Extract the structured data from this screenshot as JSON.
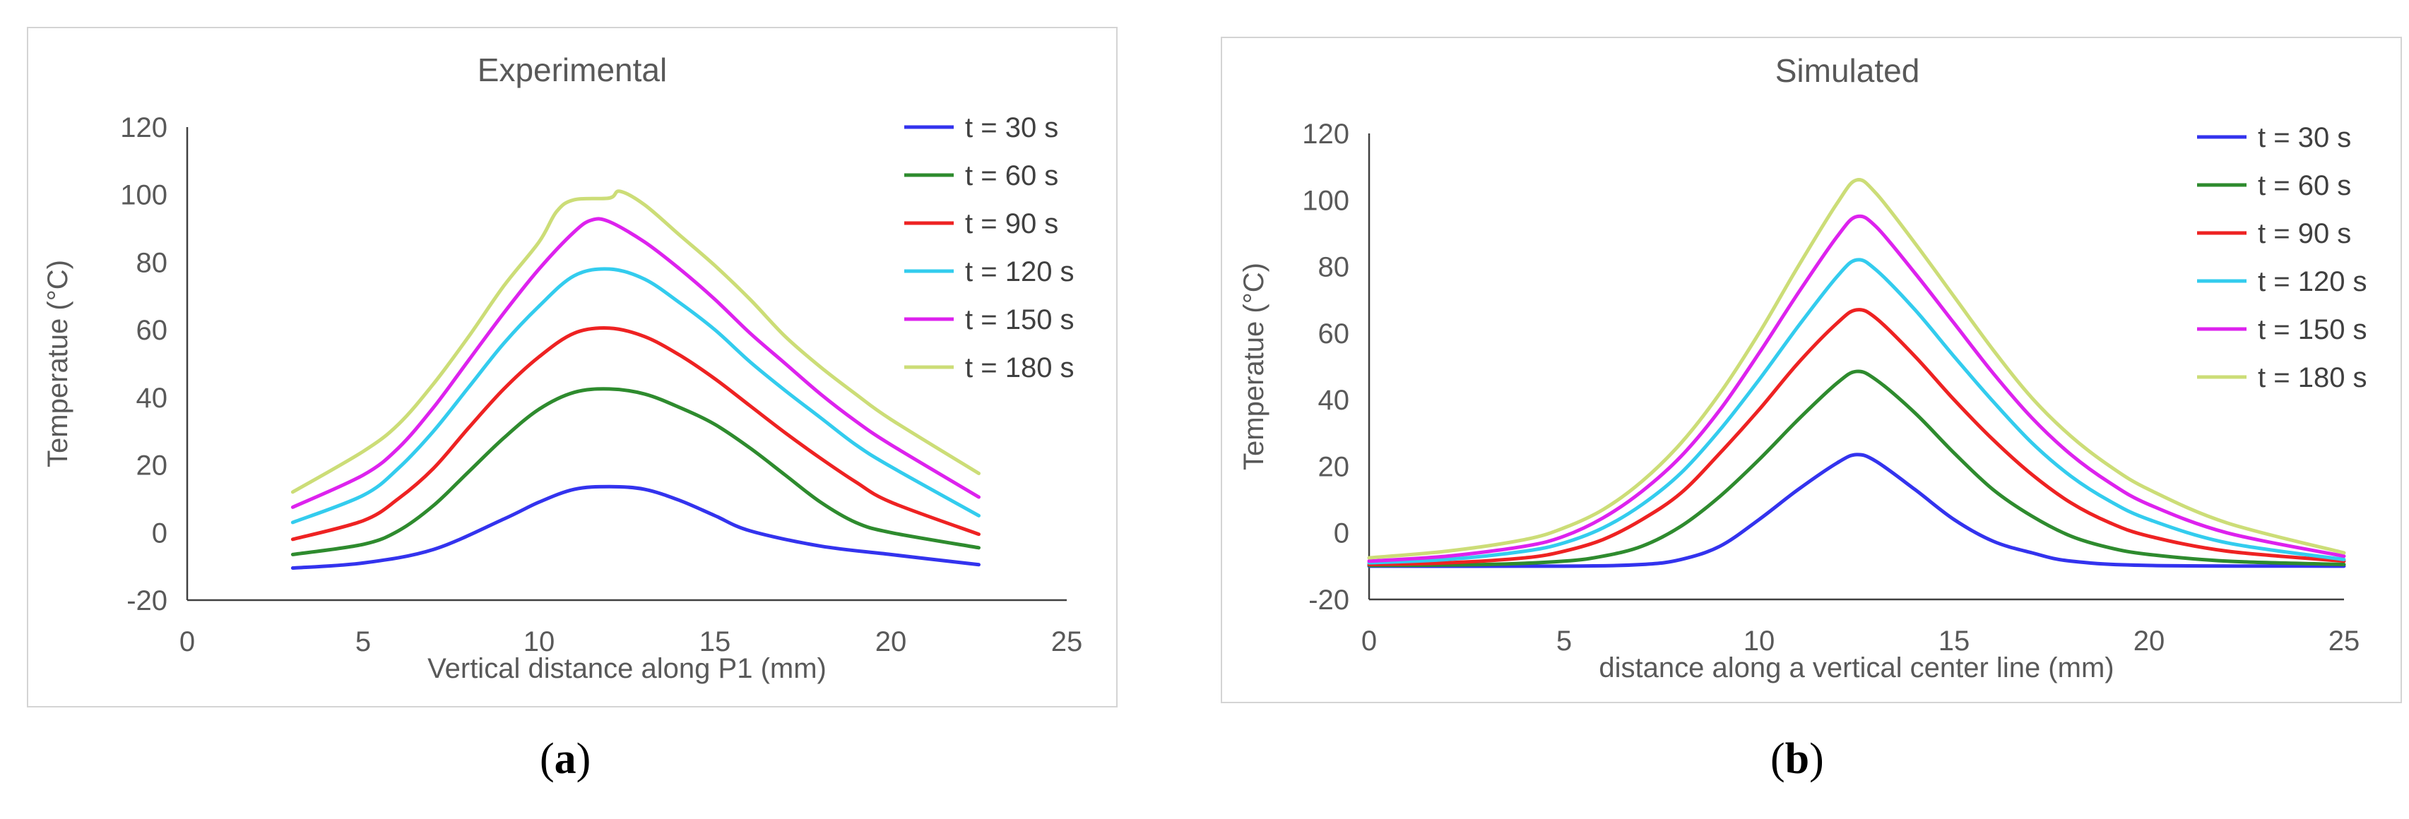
{
  "captions": {
    "a_open": "(",
    "a_letter": "a",
    "a_close": ")",
    "b_open": "(",
    "b_letter": "b",
    "b_close": ")"
  },
  "colors": {
    "t30": "#3333ee",
    "t60": "#2e8b2e",
    "t90": "#ee2222",
    "t120": "#33ccee",
    "t150": "#dd22ee",
    "t180": "#ccdd77",
    "axis": "#404040",
    "text": "#595959"
  },
  "chart_data": [
    {
      "type": "line",
      "title": "Experimental",
      "xlabel": "Vertical distance along P1 (mm)",
      "ylabel": "Temperatue (°C)",
      "xlim": [
        0,
        25
      ],
      "ylim": [
        -20,
        120
      ],
      "xticks": [
        0,
        5,
        10,
        15,
        20,
        25
      ],
      "yticks": [
        -20,
        0,
        20,
        40,
        60,
        80,
        100,
        120
      ],
      "legend_position": "top-right",
      "series": [
        {
          "name": "t = 30 s",
          "color": "#3333ee",
          "points": [
            [
              3,
              -10.5
            ],
            [
              5,
              -9
            ],
            [
              7,
              -5
            ],
            [
              9,
              4
            ],
            [
              10,
              9
            ],
            [
              11,
              12.8
            ],
            [
              12,
              13.6
            ],
            [
              13,
              12.8
            ],
            [
              14,
              9.5
            ],
            [
              15,
              5
            ],
            [
              16,
              0.5
            ],
            [
              18,
              -4
            ],
            [
              20,
              -6.5
            ],
            [
              22.5,
              -9.5
            ]
          ]
        },
        {
          "name": "t = 60 s",
          "color": "#2e8b2e",
          "points": [
            [
              3,
              -6.5
            ],
            [
              5,
              -3.5
            ],
            [
              6,
              0.5
            ],
            [
              7,
              8
            ],
            [
              8,
              18
            ],
            [
              9,
              28
            ],
            [
              10,
              36.5
            ],
            [
              11,
              41.5
            ],
            [
              12,
              42.5
            ],
            [
              13,
              41
            ],
            [
              14,
              37
            ],
            [
              15,
              32
            ],
            [
              16,
              25
            ],
            [
              17,
              17
            ],
            [
              18,
              9
            ],
            [
              19,
              3
            ],
            [
              20,
              0
            ],
            [
              22.5,
              -4.5
            ]
          ]
        },
        {
          "name": "t = 90 s",
          "color": "#ee2222",
          "points": [
            [
              3,
              -2
            ],
            [
              5,
              3.5
            ],
            [
              6,
              10
            ],
            [
              7,
              19
            ],
            [
              8,
              31
            ],
            [
              9,
              42.5
            ],
            [
              10,
              52
            ],
            [
              11,
              59
            ],
            [
              12,
              60.5
            ],
            [
              13,
              58
            ],
            [
              14,
              52.5
            ],
            [
              15,
              45.5
            ],
            [
              16,
              37.5
            ],
            [
              17,
              29.5
            ],
            [
              18,
              22
            ],
            [
              19,
              15
            ],
            [
              20,
              9
            ],
            [
              22.5,
              -0.5
            ]
          ]
        },
        {
          "name": "t = 120 s",
          "color": "#33ccee",
          "points": [
            [
              3,
              3
            ],
            [
              5,
              11
            ],
            [
              6,
              19
            ],
            [
              7,
              30
            ],
            [
              8,
              43
            ],
            [
              9,
              56
            ],
            [
              10,
              67
            ],
            [
              11,
              76
            ],
            [
              12,
              78
            ],
            [
              13,
              75
            ],
            [
              14,
              68
            ],
            [
              15,
              60
            ],
            [
              16,
              50.5
            ],
            [
              17,
              42
            ],
            [
              18,
              34
            ],
            [
              19,
              26
            ],
            [
              20,
              19.5
            ],
            [
              22.5,
              5
            ]
          ]
        },
        {
          "name": "t = 150 s",
          "color": "#dd22ee",
          "points": [
            [
              3,
              7.5
            ],
            [
              5,
              17
            ],
            [
              6,
              25
            ],
            [
              7,
              37
            ],
            [
              8,
              51
            ],
            [
              9,
              65
            ],
            [
              10,
              78
            ],
            [
              11,
              89
            ],
            [
              11.5,
              92.5
            ],
            [
              12,
              92
            ],
            [
              13,
              86
            ],
            [
              14,
              78
            ],
            [
              15,
              69
            ],
            [
              16,
              59
            ],
            [
              17,
              50
            ],
            [
              18,
              41
            ],
            [
              19,
              33
            ],
            [
              20,
              26
            ],
            [
              22.5,
              10.5
            ]
          ]
        },
        {
          "name": "t = 180 s",
          "color": "#ccdd77",
          "points": [
            [
              3,
              12
            ],
            [
              5,
              24
            ],
            [
              6,
              32
            ],
            [
              7,
              44
            ],
            [
              8,
              58
            ],
            [
              9,
              73
            ],
            [
              10,
              86
            ],
            [
              10.5,
              95
            ],
            [
              11,
              98.5
            ],
            [
              12,
              99
            ],
            [
              12.3,
              101
            ],
            [
              13,
              97
            ],
            [
              14,
              88
            ],
            [
              15,
              79
            ],
            [
              16,
              69
            ],
            [
              17,
              58
            ],
            [
              18,
              49
            ],
            [
              19,
              41
            ],
            [
              20,
              33.5
            ],
            [
              22.5,
              17.5
            ]
          ]
        }
      ]
    },
    {
      "type": "line",
      "title": "Simulated",
      "xlabel": "distance along a vertical center line (mm)",
      "ylabel": "Temperatue (°C)",
      "xlim": [
        0,
        25
      ],
      "ylim": [
        -20,
        120
      ],
      "xticks": [
        0,
        5,
        10,
        15,
        20,
        25
      ],
      "yticks": [
        -20,
        0,
        20,
        40,
        60,
        80,
        100,
        120
      ],
      "legend_position": "top-right",
      "series": [
        {
          "name": "t = 30 s",
          "color": "#3333ee",
          "points": [
            [
              0,
              -10
            ],
            [
              5,
              -10
            ],
            [
              7,
              -9.5
            ],
            [
              8,
              -8
            ],
            [
              9,
              -4
            ],
            [
              10,
              4
            ],
            [
              11,
              13
            ],
            [
              12,
              21
            ],
            [
              12.5,
              23.5
            ],
            [
              13,
              21.5
            ],
            [
              14,
              13
            ],
            [
              15,
              4
            ],
            [
              16,
              -2.5
            ],
            [
              17,
              -6
            ],
            [
              18,
              -8.5
            ],
            [
              20,
              -9.8
            ],
            [
              25,
              -10
            ]
          ]
        },
        {
          "name": "t = 60 s",
          "color": "#2e8b2e",
          "points": [
            [
              0,
              -9.8
            ],
            [
              3,
              -9.5
            ],
            [
              5,
              -8.5
            ],
            [
              6,
              -7
            ],
            [
              7,
              -4
            ],
            [
              8,
              2
            ],
            [
              9,
              11
            ],
            [
              10,
              22
            ],
            [
              11,
              34
            ],
            [
              12,
              45
            ],
            [
              12.5,
              48.5
            ],
            [
              13,
              46
            ],
            [
              14,
              36
            ],
            [
              15,
              24
            ],
            [
              16,
              13
            ],
            [
              17,
              5
            ],
            [
              18,
              -1
            ],
            [
              19,
              -4.5
            ],
            [
              20,
              -6.5
            ],
            [
              22,
              -8.5
            ],
            [
              25,
              -9.5
            ]
          ]
        },
        {
          "name": "t = 90 s",
          "color": "#ee2222",
          "points": [
            [
              0,
              -9.5
            ],
            [
              2,
              -9
            ],
            [
              4,
              -7.5
            ],
            [
              5,
              -5.5
            ],
            [
              6,
              -2
            ],
            [
              7,
              4
            ],
            [
              8,
              12
            ],
            [
              9,
              24
            ],
            [
              10,
              37
            ],
            [
              11,
              51
            ],
            [
              12,
              63
            ],
            [
              12.5,
              67
            ],
            [
              13,
              64.5
            ],
            [
              14,
              53
            ],
            [
              15,
              40
            ],
            [
              16,
              28
            ],
            [
              17,
              17.5
            ],
            [
              18,
              9
            ],
            [
              19,
              3
            ],
            [
              20,
              -1
            ],
            [
              22,
              -5.5
            ],
            [
              25,
              -8.5
            ]
          ]
        },
        {
          "name": "t = 120 s",
          "color": "#33ccee",
          "points": [
            [
              0,
              -9
            ],
            [
              2,
              -8
            ],
            [
              4,
              -5.5
            ],
            [
              5,
              -3
            ],
            [
              6,
              1.5
            ],
            [
              7,
              8.5
            ],
            [
              8,
              18
            ],
            [
              9,
              31
            ],
            [
              10,
              46
            ],
            [
              11,
              62
            ],
            [
              12,
              77
            ],
            [
              12.5,
              82
            ],
            [
              13,
              79
            ],
            [
              14,
              67
            ],
            [
              15,
              53
            ],
            [
              16,
              39.5
            ],
            [
              17,
              27
            ],
            [
              18,
              17
            ],
            [
              19,
              9.5
            ],
            [
              20,
              4
            ],
            [
              22,
              -3
            ],
            [
              25,
              -8
            ]
          ]
        },
        {
          "name": "t = 150 s",
          "color": "#dd22ee",
          "points": [
            [
              0,
              -8.5
            ],
            [
              2,
              -7
            ],
            [
              4,
              -4
            ],
            [
              5,
              -1
            ],
            [
              6,
              4.5
            ],
            [
              7,
              12.5
            ],
            [
              8,
              23
            ],
            [
              9,
              37
            ],
            [
              10,
              54
            ],
            [
              11,
              72
            ],
            [
              12,
              89
            ],
            [
              12.5,
              95
            ],
            [
              13,
              92
            ],
            [
              14,
              78
            ],
            [
              15,
              63
            ],
            [
              16,
              48
            ],
            [
              17,
              34.5
            ],
            [
              18,
              23.5
            ],
            [
              19,
              15
            ],
            [
              20,
              8.5
            ],
            [
              22,
              0
            ],
            [
              25,
              -7
            ]
          ]
        },
        {
          "name": "t = 180 s",
          "color": "#ccdd77",
          "points": [
            [
              0,
              -7.5
            ],
            [
              2,
              -5.5
            ],
            [
              4,
              -2
            ],
            [
              5,
              1.5
            ],
            [
              6,
              7
            ],
            [
              7,
              15.5
            ],
            [
              8,
              27
            ],
            [
              9,
              42
            ],
            [
              10,
              60
            ],
            [
              11,
              80
            ],
            [
              12,
              99
            ],
            [
              12.5,
              106
            ],
            [
              13,
              102
            ],
            [
              14,
              87
            ],
            [
              15,
              71
            ],
            [
              16,
              55
            ],
            [
              17,
              40.5
            ],
            [
              18,
              29
            ],
            [
              19,
              20
            ],
            [
              20,
              13
            ],
            [
              22,
              3
            ],
            [
              25,
              -6
            ]
          ]
        }
      ]
    }
  ]
}
